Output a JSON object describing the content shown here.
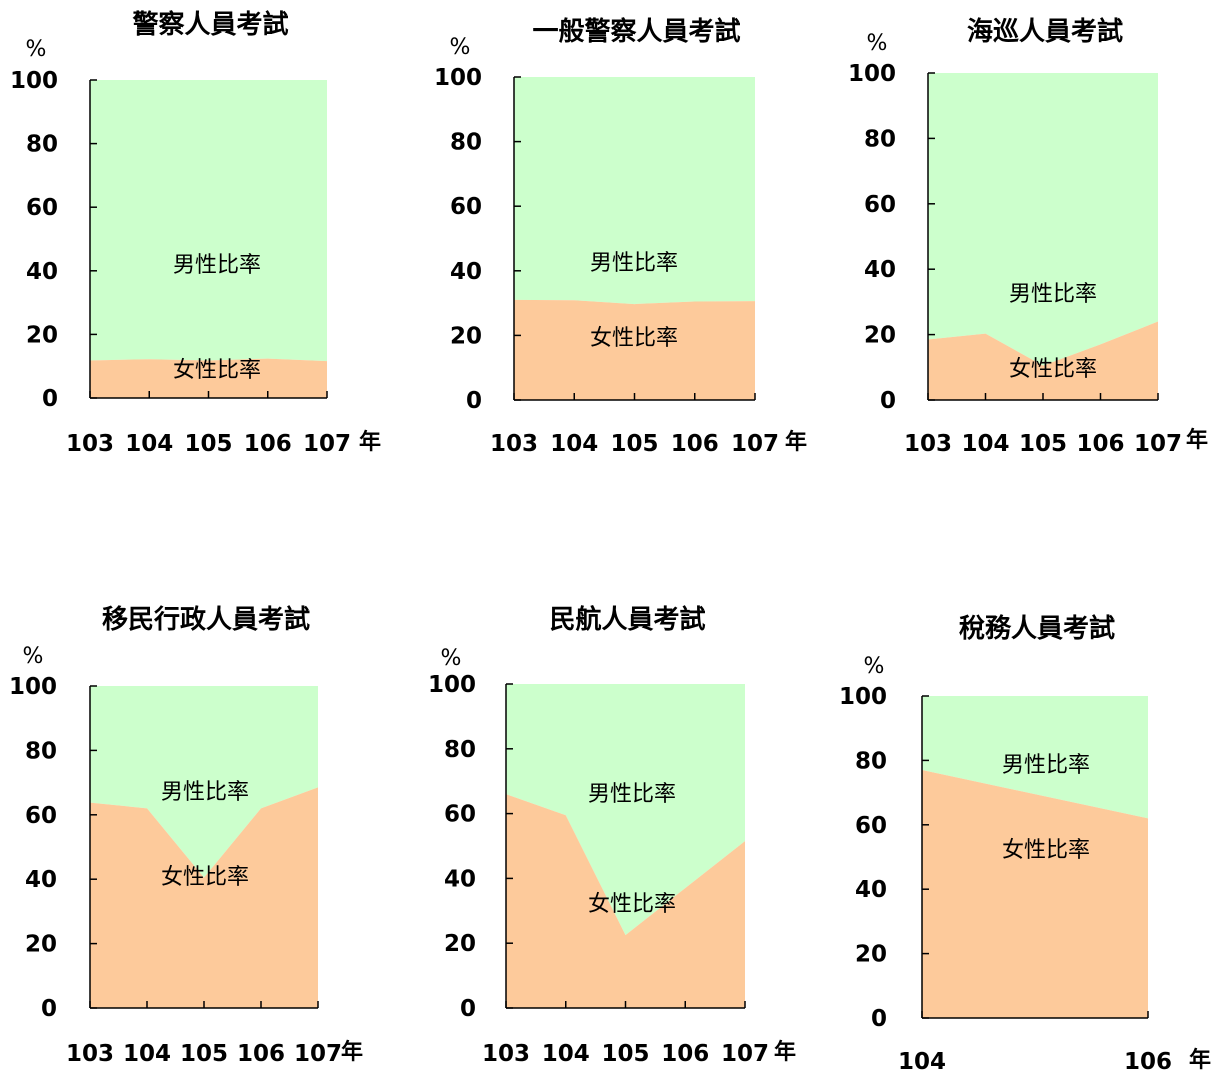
{
  "colors": {
    "female": "#fdca9b",
    "male": "#ccffcc",
    "axis": "#000000"
  },
  "chart_data": [
    {
      "type": "area",
      "title": "警察人員考試",
      "unit": "%",
      "year_unit": "年",
      "x": [
        "103",
        "104",
        "105",
        "106",
        "107"
      ],
      "ylim": [
        0,
        100
      ],
      "yticks": [
        "0",
        "20",
        "40",
        "60",
        "80",
        "100"
      ],
      "series": [
        {
          "name": "女性比率",
          "values": [
            11.8,
            12.2,
            11.8,
            12.4,
            11.6
          ]
        },
        {
          "name": "男性比率",
          "values": [
            88.2,
            87.8,
            88.2,
            87.6,
            88.4
          ]
        }
      ]
    },
    {
      "type": "area",
      "title": "一般警察人員考試",
      "unit": "%",
      "year_unit": "年",
      "x": [
        "103",
        "104",
        "105",
        "106",
        "107"
      ],
      "ylim": [
        0,
        100
      ],
      "yticks": [
        "0",
        "20",
        "40",
        "60",
        "80",
        "100"
      ],
      "series": [
        {
          "name": "女性比率",
          "values": [
            31.0,
            30.9,
            29.7,
            30.5,
            30.6
          ]
        },
        {
          "name": "男性比率",
          "values": [
            69.0,
            69.1,
            70.3,
            69.5,
            69.4
          ]
        }
      ]
    },
    {
      "type": "area",
      "title": "海巡人員考試",
      "unit": "%",
      "year_unit": "年",
      "x": [
        "103",
        "104",
        "105",
        "106",
        "107"
      ],
      "ylim": [
        0,
        100
      ],
      "yticks": [
        "0",
        "20",
        "40",
        "60",
        "80",
        "100"
      ],
      "series": [
        {
          "name": "女性比率",
          "values": [
            18.5,
            20.3,
            10.5,
            17.0,
            24.0
          ]
        },
        {
          "name": "男性比率",
          "values": [
            81.5,
            79.7,
            89.5,
            83.0,
            76.0
          ]
        }
      ]
    },
    {
      "type": "area",
      "title": "移民行政人員考試",
      "unit": "%",
      "year_unit": "年",
      "x": [
        "103",
        "104",
        "105",
        "106",
        "107"
      ],
      "ylim": [
        0,
        100
      ],
      "yticks": [
        "0",
        "20",
        "40",
        "60",
        "80",
        "100"
      ],
      "series": [
        {
          "name": "女性比率",
          "values": [
            63.8,
            62.0,
            40.5,
            62.0,
            68.5
          ]
        },
        {
          "name": "男性比率",
          "values": [
            36.2,
            38.0,
            59.5,
            38.0,
            31.5
          ]
        }
      ]
    },
    {
      "type": "area",
      "title": "民航人員考試",
      "unit": "%",
      "year_unit": "年",
      "x": [
        "103",
        "104",
        "105",
        "106",
        "107"
      ],
      "ylim": [
        0,
        100
      ],
      "yticks": [
        "0",
        "20",
        "40",
        "60",
        "80",
        "100"
      ],
      "series": [
        {
          "name": "女性比率",
          "values": [
            66.0,
            59.5,
            22.5,
            37.0,
            51.5
          ]
        },
        {
          "name": "男性比率",
          "values": [
            34.0,
            40.5,
            77.5,
            63.0,
            48.5
          ]
        }
      ]
    },
    {
      "type": "area",
      "title": "稅務人員考試",
      "unit": "%",
      "year_unit": "年",
      "x": [
        "104",
        "106"
      ],
      "ylim": [
        0,
        100
      ],
      "yticks": [
        "0",
        "20",
        "40",
        "60",
        "80",
        "100"
      ],
      "series": [
        {
          "name": "女性比率",
          "values": [
            77.0,
            62.0
          ]
        },
        {
          "name": "男性比率",
          "values": [
            23.0,
            38.0
          ]
        }
      ]
    }
  ]
}
